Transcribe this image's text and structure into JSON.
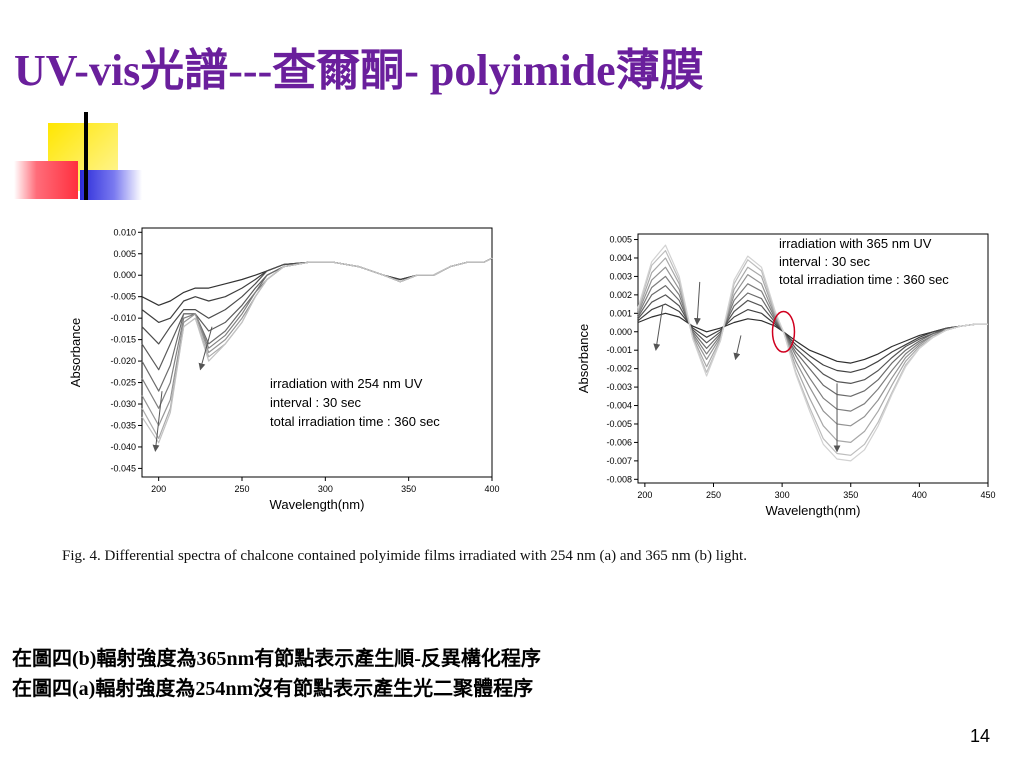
{
  "title": "UV-vis光譜---查爾酮- polyimide薄膜",
  "caption": "Fig. 4. Differential spectra of chalcone contained polyimide films irradiated with 254 nm (a) and 365 nm (b) light.",
  "body_lines": [
    "在圖四(b)輻射強度為365nm有節點表示產生順-反異構化程序",
    "在圖四(a)輻射強度為254nm沒有節點表示產生光二聚體程序"
  ],
  "page_number": "14",
  "colors": {
    "title": "#6a1f9c",
    "node_circle": "#d0001f"
  },
  "chart_data": [
    {
      "type": "line",
      "xlabel": "Wavelength(nm)",
      "ylabel": "Absorbance",
      "xlim": [
        190,
        400
      ],
      "ylim": [
        -0.047,
        0.011
      ],
      "x_ticks": [
        200,
        250,
        300,
        350,
        400
      ],
      "x_tick_labels": [
        "200",
        "250",
        "300",
        "350",
        "400"
      ],
      "y_ticks": [
        0.01,
        0.005,
        0.0,
        -0.005,
        -0.01,
        -0.015,
        -0.02,
        -0.025,
        -0.03,
        -0.035,
        -0.04,
        -0.045
      ],
      "y_tick_labels": [
        "0.010",
        "0.005",
        "0.000",
        "-0.005",
        "-0.010",
        "-0.015",
        "-0.020",
        "-0.025",
        "-0.030",
        "-0.035",
        "-0.040",
        "-0.045"
      ],
      "annotation_lines": [
        "irradiation with 254 nm UV",
        "interval : 30 sec",
        "total irradiation time : 360 sec"
      ],
      "arrows": [
        {
          "from": [
            232,
            -0.012
          ],
          "to": [
            225,
            -0.022
          ]
        },
        {
          "from": [
            202,
            -0.027
          ],
          "to": [
            198,
            -0.041
          ]
        }
      ],
      "x": [
        190,
        200,
        207,
        215,
        222,
        230,
        240,
        250,
        258,
        265,
        275,
        290,
        305,
        320,
        335,
        345,
        355,
        365,
        375,
        385,
        395,
        400
      ],
      "series": [
        {
          "values": [
            -0.005,
            -0.007,
            -0.006,
            -0.004,
            -0.003,
            -0.003,
            -0.002,
            -0.001,
            0.0,
            0.001,
            0.0025,
            0.003,
            0.003,
            0.002,
            0.0,
            -0.001,
            0.0,
            0.0,
            0.002,
            0.003,
            0.003,
            0.004
          ],
          "color": "#333333"
        },
        {
          "values": [
            -0.008,
            -0.011,
            -0.01,
            -0.006,
            -0.005,
            -0.006,
            -0.005,
            -0.003,
            -0.001,
            0.001,
            0.0025,
            0.003,
            0.003,
            0.002,
            0.0,
            -0.001,
            0.0,
            0.0,
            0.002,
            0.003,
            0.003,
            0.004
          ],
          "color": "#3f3f3f"
        },
        {
          "values": [
            -0.012,
            -0.016,
            -0.012,
            -0.008,
            -0.008,
            -0.01,
            -0.008,
            -0.005,
            -0.002,
            0.001,
            0.0025,
            0.003,
            0.003,
            0.002,
            0.0,
            -0.0015,
            0.0,
            0.0,
            0.002,
            0.003,
            0.003,
            0.004
          ],
          "color": "#4d4d4d"
        },
        {
          "values": [
            -0.016,
            -0.022,
            -0.016,
            -0.009,
            -0.009,
            -0.013,
            -0.011,
            -0.007,
            -0.003,
            0.0,
            0.002,
            0.003,
            0.003,
            0.002,
            0.0,
            -0.0015,
            0.0,
            0.0,
            0.002,
            0.003,
            0.003,
            0.004
          ],
          "color": "#5c5c5c"
        },
        {
          "values": [
            -0.02,
            -0.027,
            -0.021,
            -0.009,
            -0.009,
            -0.016,
            -0.013,
            -0.008,
            -0.004,
            0.0,
            0.002,
            0.003,
            0.003,
            0.002,
            0.0,
            -0.0015,
            0.0,
            0.0,
            0.002,
            0.003,
            0.003,
            0.004
          ],
          "color": "#6d6d6d"
        },
        {
          "values": [
            -0.024,
            -0.031,
            -0.025,
            -0.01,
            -0.009,
            -0.017,
            -0.014,
            -0.009,
            -0.004,
            -0.001,
            0.002,
            0.003,
            0.003,
            0.002,
            0.0,
            -0.0015,
            0.0,
            0.0,
            0.002,
            0.003,
            0.003,
            0.004
          ],
          "color": "#808080"
        },
        {
          "values": [
            -0.028,
            -0.035,
            -0.029,
            -0.011,
            -0.009,
            -0.018,
            -0.015,
            -0.01,
            -0.005,
            -0.001,
            0.002,
            0.003,
            0.003,
            0.002,
            0.0,
            -0.0015,
            0.0,
            0.0,
            0.002,
            0.003,
            0.003,
            0.004
          ],
          "color": "#959595"
        },
        {
          "values": [
            -0.031,
            -0.038,
            -0.031,
            -0.012,
            -0.01,
            -0.019,
            -0.016,
            -0.011,
            -0.005,
            -0.001,
            0.002,
            0.003,
            0.003,
            0.002,
            0.0,
            -0.0015,
            0.0,
            0.0,
            0.002,
            0.003,
            0.003,
            0.004
          ],
          "color": "#aaaaaa"
        },
        {
          "values": [
            -0.033,
            -0.039,
            -0.032,
            -0.012,
            -0.01,
            -0.02,
            -0.016,
            -0.011,
            -0.005,
            -0.001,
            0.002,
            0.003,
            0.003,
            0.002,
            0.0,
            -0.0015,
            0.0,
            0.0,
            0.002,
            0.003,
            0.003,
            0.004
          ],
          "color": "#c2c2c2"
        }
      ]
    },
    {
      "type": "line",
      "xlabel": "Wavelength(nm)",
      "ylabel": "Absorbance",
      "xlim": [
        195,
        450
      ],
      "ylim": [
        -0.0082,
        0.0053
      ],
      "x_ticks": [
        200,
        250,
        300,
        350,
        400,
        450
      ],
      "x_tick_labels": [
        "200",
        "250",
        "300",
        "350",
        "400",
        "450"
      ],
      "y_ticks": [
        0.005,
        0.004,
        0.003,
        0.002,
        0.001,
        0.0,
        -0.001,
        -0.002,
        -0.003,
        -0.004,
        -0.005,
        -0.006,
        -0.007,
        -0.008
      ],
      "y_tick_labels": [
        "0.005",
        "0.004",
        "0.003",
        "0.002",
        "0.001",
        "0.000",
        "-0.001",
        "-0.002",
        "-0.003",
        "-0.004",
        "-0.005",
        "-0.006",
        "-0.007",
        "-0.008"
      ],
      "annotation_lines": [
        "irradiation with 365 nm UV",
        "interval : 30 sec",
        "total irradiation time : 360 sec"
      ],
      "node_circle": {
        "x": 301,
        "y": 0.0,
        "rx": 8,
        "ry": 0.0011
      },
      "arrows": [
        {
          "from": [
            213,
            0.0014
          ],
          "to": [
            208,
            -0.001
          ]
        },
        {
          "from": [
            240,
            0.0027
          ],
          "to": [
            238,
            0.0004
          ]
        },
        {
          "from": [
            270,
            -0.0002
          ],
          "to": [
            266,
            -0.0015
          ]
        },
        {
          "from": [
            340,
            -0.0028
          ],
          "to": [
            340,
            -0.0065
          ]
        }
      ],
      "x": [
        195,
        205,
        215,
        225,
        235,
        245,
        255,
        265,
        275,
        285,
        295,
        301,
        310,
        320,
        330,
        340,
        350,
        360,
        370,
        380,
        390,
        400,
        410,
        420,
        430,
        440,
        450
      ],
      "series": [
        {
          "values": [
            0.0005,
            0.0008,
            0.001,
            0.0008,
            0.0003,
            0.0,
            0.0002,
            0.0005,
            0.0007,
            0.0006,
            0.0003,
            0.0,
            -0.0005,
            -0.001,
            -0.0013,
            -0.0016,
            -0.0017,
            -0.0015,
            -0.0012,
            -0.0008,
            -0.0005,
            -0.0002,
            0.0,
            0.0002,
            0.0003,
            0.0004,
            0.0004
          ],
          "color": "#2e2e2e"
        },
        {
          "values": [
            0.0006,
            0.0012,
            0.0015,
            0.0011,
            0.0002,
            -0.0003,
            0.0001,
            0.0008,
            0.0012,
            0.001,
            0.0004,
            0.0,
            -0.0007,
            -0.0013,
            -0.0018,
            -0.0021,
            -0.0022,
            -0.002,
            -0.0016,
            -0.0011,
            -0.0007,
            -0.0003,
            0.0,
            0.0002,
            0.0003,
            0.0004,
            0.0004
          ],
          "color": "#404040"
        },
        {
          "values": [
            0.0007,
            0.0016,
            0.002,
            0.0014,
            0.0001,
            -0.0006,
            0.0,
            0.0011,
            0.0017,
            0.0014,
            0.0005,
            0.0,
            -0.0009,
            -0.0016,
            -0.0023,
            -0.0027,
            -0.0028,
            -0.0026,
            -0.0021,
            -0.0014,
            -0.0008,
            -0.0004,
            -0.0001,
            0.0002,
            0.0003,
            0.0004,
            0.0004
          ],
          "color": "#555555"
        },
        {
          "values": [
            0.0008,
            0.002,
            0.0025,
            0.0017,
            0.0,
            -0.0009,
            -0.0001,
            0.0014,
            0.0021,
            0.0018,
            0.0006,
            0.0,
            -0.0011,
            -0.002,
            -0.0029,
            -0.0034,
            -0.0035,
            -0.0032,
            -0.0026,
            -0.0017,
            -0.001,
            -0.0005,
            -0.0001,
            0.0001,
            0.0003,
            0.0004,
            0.0004
          ],
          "color": "#6a6a6a"
        },
        {
          "values": [
            0.0009,
            0.0024,
            0.003,
            0.002,
            -0.0001,
            -0.0012,
            -0.0002,
            0.0017,
            0.0026,
            0.0022,
            0.0007,
            0.0,
            -0.0013,
            -0.0025,
            -0.0036,
            -0.0042,
            -0.0043,
            -0.0039,
            -0.0031,
            -0.0021,
            -0.0012,
            -0.0006,
            -0.0002,
            0.0001,
            0.0003,
            0.0004,
            0.0004
          ],
          "color": "#7e7e7e"
        },
        {
          "values": [
            0.001,
            0.0028,
            0.0035,
            0.0023,
            -0.0002,
            -0.0015,
            -0.0003,
            0.002,
            0.0031,
            0.0026,
            0.0008,
            0.0,
            -0.0016,
            -0.003,
            -0.0043,
            -0.005,
            -0.0051,
            -0.0046,
            -0.0037,
            -0.0025,
            -0.0014,
            -0.0007,
            -0.0002,
            0.0001,
            0.0003,
            0.0004,
            0.0004
          ],
          "color": "#939393"
        },
        {
          "values": [
            0.0011,
            0.0032,
            0.004,
            0.0026,
            -0.0003,
            -0.0019,
            -0.0004,
            0.0023,
            0.0035,
            0.003,
            0.0009,
            0.0,
            -0.0019,
            -0.0036,
            -0.0051,
            -0.0059,
            -0.006,
            -0.0054,
            -0.0043,
            -0.0029,
            -0.0016,
            -0.0008,
            -0.0003,
            0.0001,
            0.0003,
            0.0004,
            0.0004
          ],
          "color": "#a8a8a8"
        },
        {
          "values": [
            0.0012,
            0.0036,
            0.0044,
            0.0028,
            -0.0004,
            -0.0022,
            -0.0005,
            0.0026,
            0.0039,
            0.0033,
            0.001,
            0.0,
            -0.0022,
            -0.0041,
            -0.0058,
            -0.0066,
            -0.0067,
            -0.0061,
            -0.0049,
            -0.0033,
            -0.0018,
            -0.0009,
            -0.0003,
            0.0001,
            0.0003,
            0.0004,
            0.0004
          ],
          "color": "#bdbdbd"
        },
        {
          "values": [
            0.0013,
            0.0038,
            0.0047,
            0.003,
            -0.0004,
            -0.0024,
            -0.0005,
            0.0028,
            0.0041,
            0.0035,
            0.0011,
            0.0,
            -0.0023,
            -0.0043,
            -0.0061,
            -0.0069,
            -0.007,
            -0.0064,
            -0.0051,
            -0.0034,
            -0.0019,
            -0.0009,
            -0.0003,
            0.0001,
            0.0003,
            0.0004,
            0.0004
          ],
          "color": "#d2d2d2"
        }
      ]
    }
  ]
}
